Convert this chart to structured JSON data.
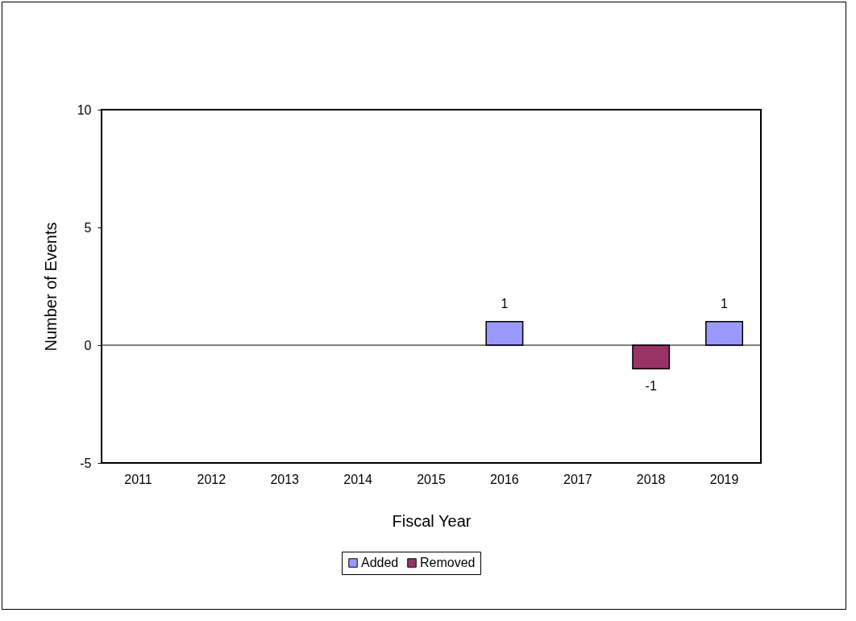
{
  "chart_data": {
    "type": "bar",
    "stacked": true,
    "xlabel": "Fiscal Year",
    "ylabel": "Number of Events",
    "categories": [
      "2011",
      "2012",
      "2013",
      "2014",
      "2015",
      "2016",
      "2017",
      "2018",
      "2019"
    ],
    "series": [
      {
        "name": "Added",
        "color": "#9999ff",
        "values": [
          null,
          null,
          null,
          null,
          null,
          1,
          null,
          null,
          1
        ]
      },
      {
        "name": "Removed",
        "color": "#993366",
        "values": [
          null,
          null,
          null,
          null,
          null,
          null,
          null,
          -1,
          null
        ]
      }
    ],
    "ylim": [
      -5,
      10
    ],
    "yticks": [
      -5,
      0,
      5,
      10
    ],
    "grid": false,
    "legend": "bottom",
    "data_labels": true,
    "ref_lines": [
      {
        "axis": "y",
        "value": 0
      }
    ]
  }
}
